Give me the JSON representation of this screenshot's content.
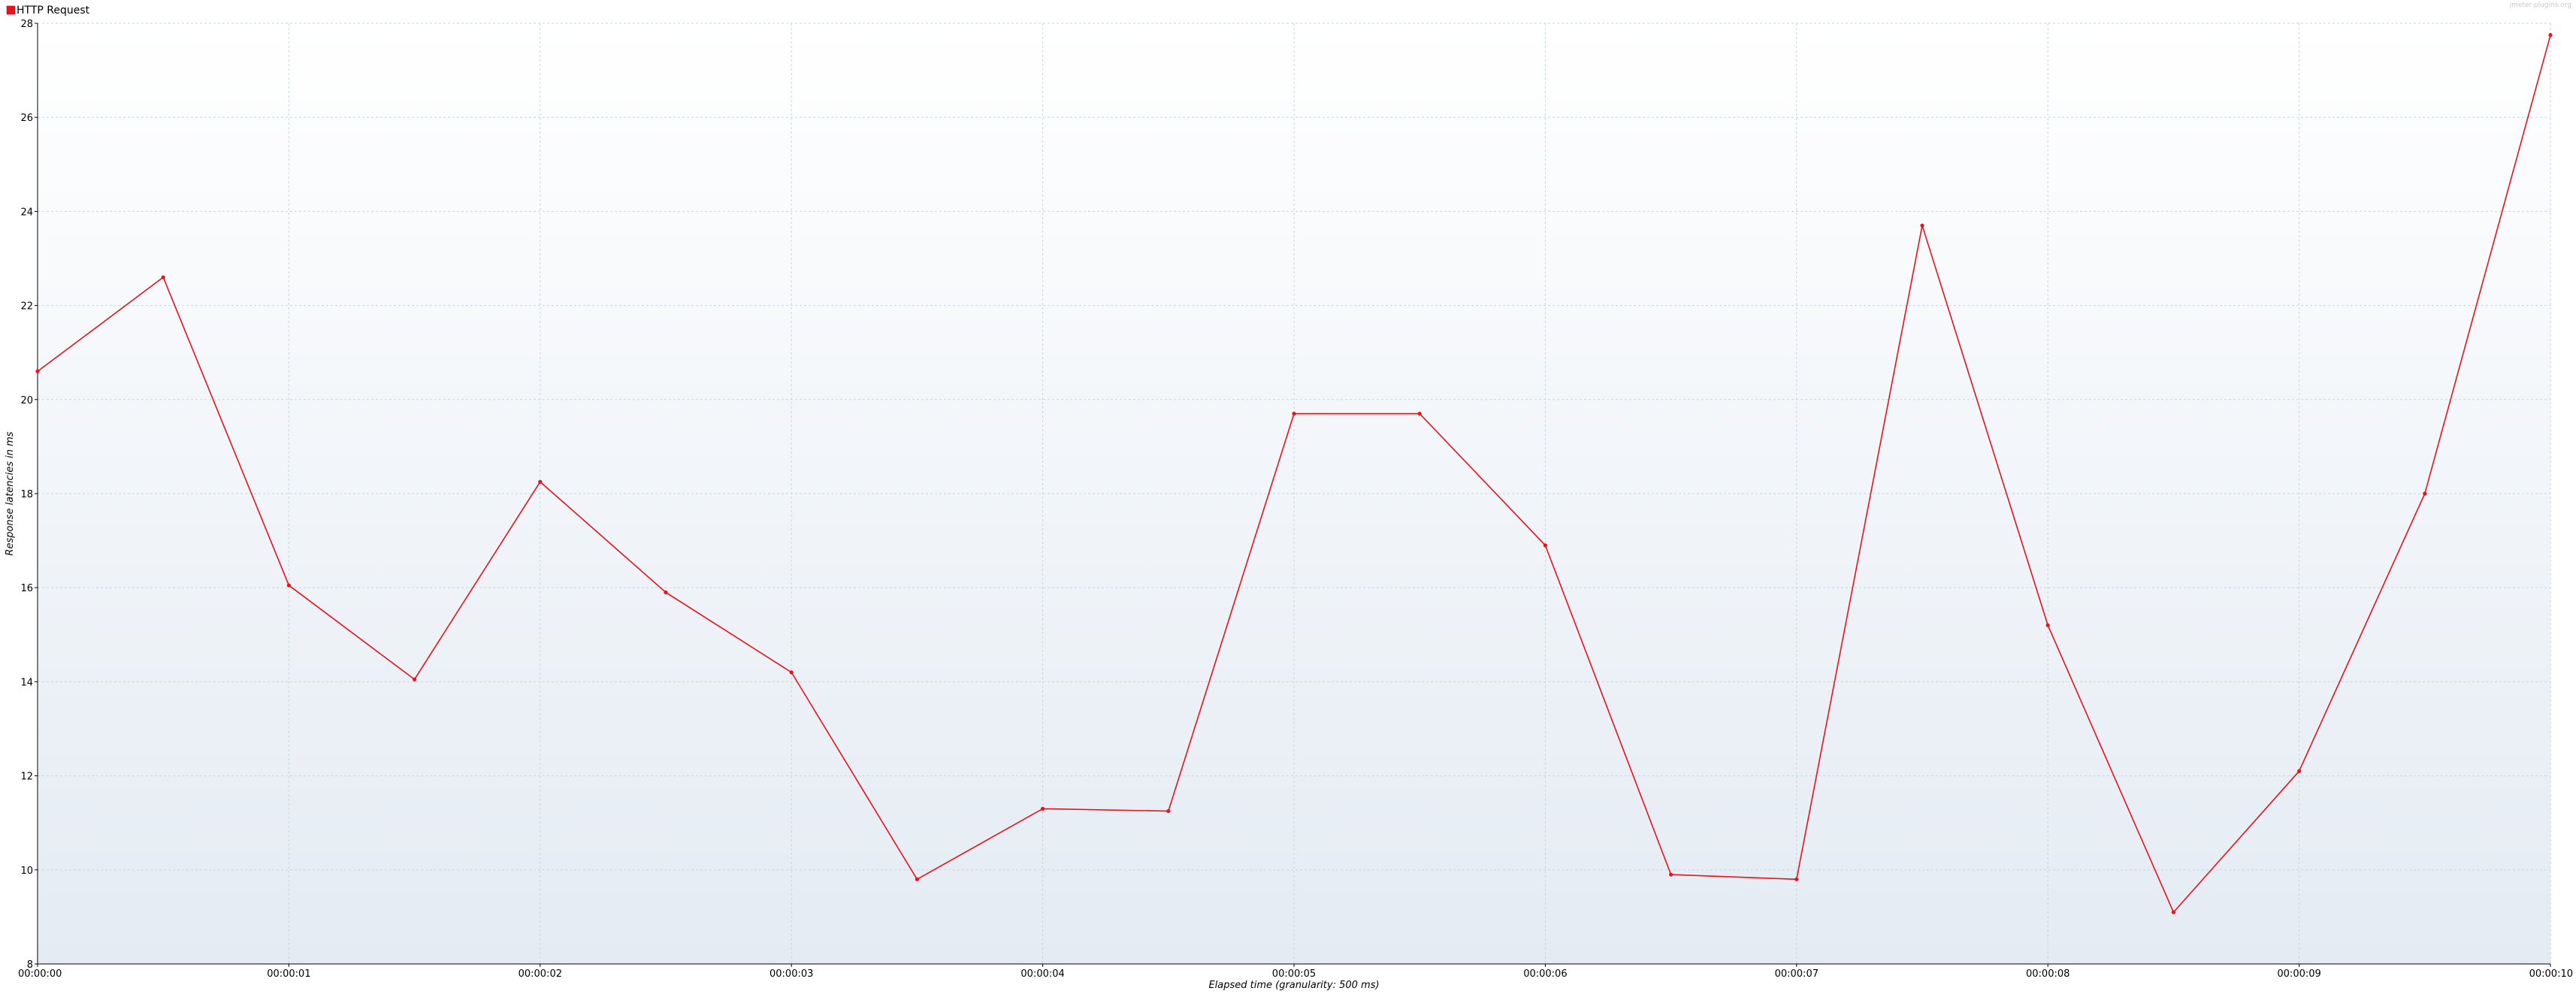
{
  "legend": {
    "label": "HTTP Request"
  },
  "watermark": "jmeter-plugins.org",
  "colors": {
    "series": "#e8121a",
    "grid": "#c5d6df",
    "background_top": "#ffffff",
    "background_bottom": "#e4ebf3",
    "axis": "#000000"
  },
  "chart_data": {
    "type": "line",
    "title": "",
    "xlabel": "Elapsed time (granularity: 500 ms)",
    "ylabel": "Response latencies in ms",
    "ylim": [
      8,
      28
    ],
    "xlim": [
      0,
      10
    ],
    "grid": true,
    "legend_position": "top-left",
    "x_ticks": [
      {
        "value": 0,
        "label": "00:00:00"
      },
      {
        "value": 1,
        "label": "00:00:01"
      },
      {
        "value": 2,
        "label": "00:00:02"
      },
      {
        "value": 3,
        "label": "00:00:03"
      },
      {
        "value": 4,
        "label": "00:00:04"
      },
      {
        "value": 5,
        "label": "00:00:05"
      },
      {
        "value": 6,
        "label": "00:00:06"
      },
      {
        "value": 7,
        "label": "00:00:07"
      },
      {
        "value": 8,
        "label": "00:00:08"
      },
      {
        "value": 9,
        "label": "00:00:09"
      },
      {
        "value": 10,
        "label": "00:00:10"
      }
    ],
    "y_ticks": [
      8,
      10,
      12,
      14,
      16,
      18,
      20,
      22,
      24,
      26,
      28
    ],
    "series": [
      {
        "name": "HTTP Request",
        "points": [
          {
            "x": 0,
            "y": 20.6
          },
          {
            "x": 0.5,
            "y": 22.6
          },
          {
            "x": 1,
            "y": 16.05
          },
          {
            "x": 1.5,
            "y": 14.05
          },
          {
            "x": 2,
            "y": 18.25
          },
          {
            "x": 2.5,
            "y": 15.9
          },
          {
            "x": 3,
            "y": 14.2
          },
          {
            "x": 3.5,
            "y": 9.8
          },
          {
            "x": 4,
            "y": 11.3
          },
          {
            "x": 4.5,
            "y": 11.25
          },
          {
            "x": 5,
            "y": 19.7
          },
          {
            "x": 5.5,
            "y": 19.7
          },
          {
            "x": 6,
            "y": 16.9
          },
          {
            "x": 6.5,
            "y": 9.9
          },
          {
            "x": 7,
            "y": 9.8
          },
          {
            "x": 7.5,
            "y": 23.7
          },
          {
            "x": 8,
            "y": 15.2
          },
          {
            "x": 8.5,
            "y": 9.1
          },
          {
            "x": 9,
            "y": 12.1
          },
          {
            "x": 9.5,
            "y": 18.0
          },
          {
            "x": 10,
            "y": 27.75
          }
        ]
      }
    ]
  }
}
